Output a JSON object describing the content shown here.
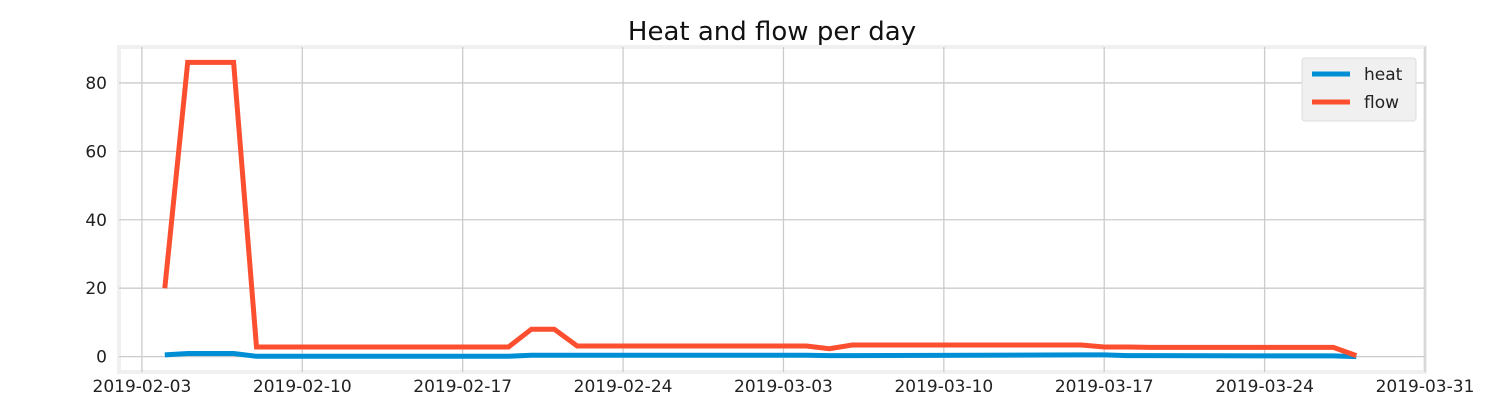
{
  "chart_data": {
    "type": "line",
    "title": "Heat and flow per day",
    "xlabel": "",
    "ylabel": "",
    "x_type": "date",
    "x": [
      "2019-02-04",
      "2019-02-05",
      "2019-02-06",
      "2019-02-07",
      "2019-02-08",
      "2019-02-12",
      "2019-02-19",
      "2019-02-20",
      "2019-02-21",
      "2019-02-22",
      "2019-03-01",
      "2019-03-04",
      "2019-03-05",
      "2019-03-06",
      "2019-03-16",
      "2019-03-17",
      "2019-03-18",
      "2019-03-19",
      "2019-03-26",
      "2019-03-27",
      "2019-03-28"
    ],
    "series": [
      {
        "name": "heat",
        "color": "#008fd5",
        "values": [
          0.5,
          0.9,
          0.9,
          0.9,
          0.1,
          0.1,
          0.1,
          0.4,
          0.4,
          0.4,
          0.4,
          0.4,
          0.3,
          0.3,
          0.5,
          0.5,
          0.3,
          0.3,
          0.2,
          0.2,
          0.0
        ]
      },
      {
        "name": "flow",
        "color": "#fc4f30",
        "values": [
          20,
          86,
          86,
          86,
          2.8,
          2.8,
          2.8,
          8,
          8,
          3.1,
          3.1,
          3.1,
          2.3,
          3.4,
          3.4,
          2.8,
          2.8,
          2.7,
          2.7,
          2.7,
          0.3
        ]
      }
    ],
    "x_ticks": [
      "2019-02-03",
      "2019-02-10",
      "2019-02-17",
      "2019-02-24",
      "2019-03-03",
      "2019-03-10",
      "2019-03-17",
      "2019-03-24",
      "2019-03-31"
    ],
    "xlim": [
      "2019-02-02",
      "2019-03-31"
    ],
    "y_ticks": [
      0,
      20,
      40,
      60,
      80
    ],
    "ylim": [
      -4.5,
      90.5
    ],
    "grid": true,
    "legend_position": "top-right",
    "style": "fivethirtyeight"
  }
}
